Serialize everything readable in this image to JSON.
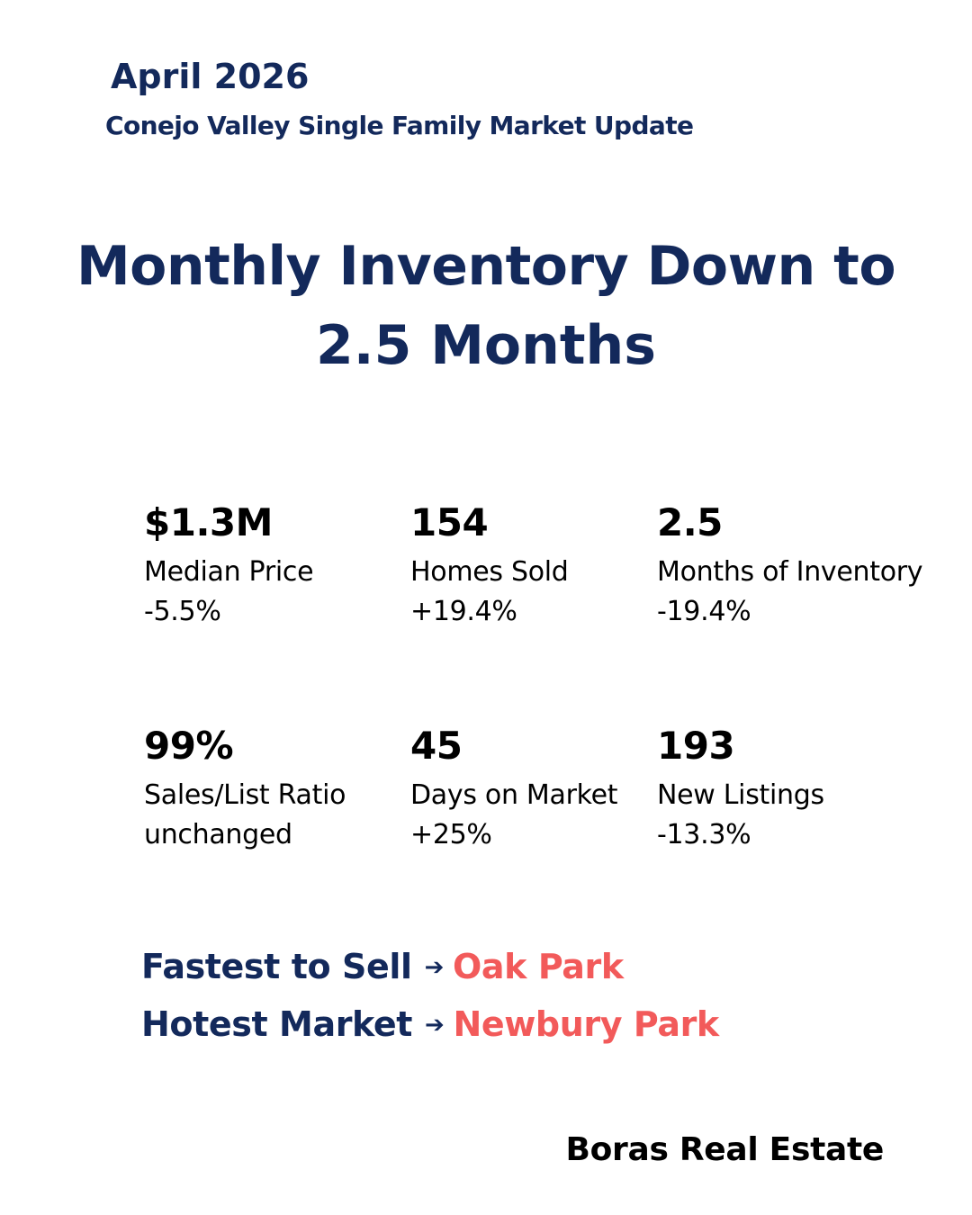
{
  "header": {
    "date": "April 2026",
    "subtitle": "Conejo Valley Single Family Market Update"
  },
  "headline": {
    "line1": "Monthly Inventory Down to",
    "line2": "2.5 Months"
  },
  "stats": [
    {
      "value": "$1.3M",
      "label": "Median Price",
      "change": "-5.5%"
    },
    {
      "value": "154",
      "label": "Homes Sold",
      "change": "+19.4%"
    },
    {
      "value": "2.5",
      "label": "Months of Inventory",
      "change": "-19.4%"
    },
    {
      "value": "99%",
      "label": "Sales/List Ratio",
      "change": "unchanged"
    },
    {
      "value": "45",
      "label": "Days on Market",
      "change": "+25%"
    },
    {
      "value": "193",
      "label": "New Listings",
      "change": "-13.3%"
    }
  ],
  "highlights": [
    {
      "label": "Fastest to Sell",
      "arrow": "➔",
      "value": "Oak Park"
    },
    {
      "label": "Hotest Market",
      "arrow": "➔",
      "value": "Newbury Park"
    }
  ],
  "footer": {
    "brand": "Boras Real Estate"
  },
  "colors": {
    "navy": "#13295b",
    "accent": "#f25a5a",
    "text": "#000000",
    "background": "#ffffff"
  }
}
